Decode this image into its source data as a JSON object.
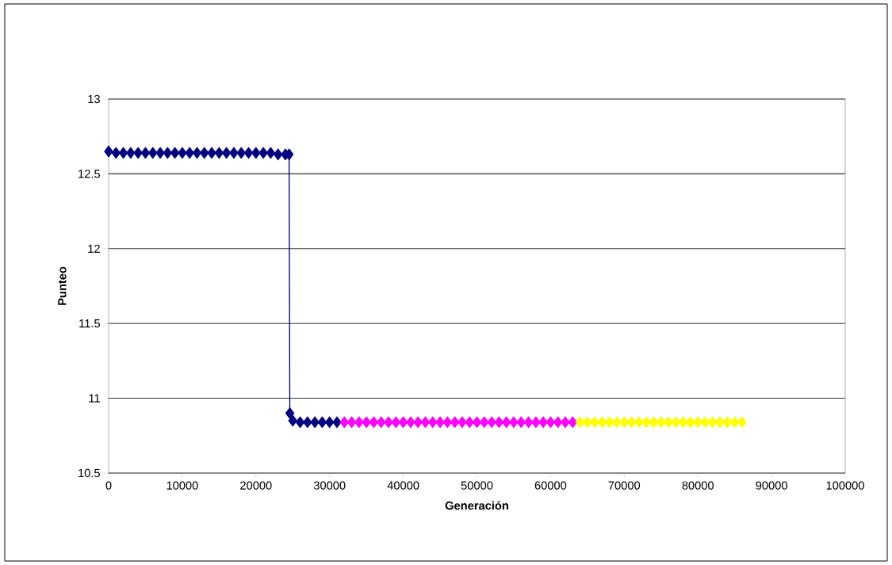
{
  "chart_data": {
    "type": "line",
    "xlabel": "Generación",
    "ylabel": "Punteo",
    "xlim": [
      0,
      100000
    ],
    "xticks": [
      0,
      10000,
      20000,
      30000,
      40000,
      50000,
      60000,
      70000,
      80000,
      90000,
      100000
    ],
    "ylim": [
      10.5,
      13
    ],
    "yticks": [
      10.5,
      11,
      11.5,
      12,
      12.5,
      13
    ],
    "grid": "y",
    "marker": "diamond",
    "line_style": "solid",
    "series": [
      {
        "color": "#000080",
        "x": [
          0,
          1000,
          2000,
          3000,
          4000,
          5000,
          6000,
          7000,
          8000,
          9000,
          10000,
          11000,
          12000,
          13000,
          14000,
          15000,
          16000,
          17000,
          18000,
          19000,
          20000,
          21000,
          22000,
          23000,
          24000,
          24500,
          24600,
          25000,
          26000,
          27000,
          28000,
          29000,
          30000,
          31000
        ],
        "values": [
          12.65,
          12.64,
          12.64,
          12.64,
          12.64,
          12.64,
          12.64,
          12.64,
          12.64,
          12.64,
          12.64,
          12.64,
          12.64,
          12.64,
          12.64,
          12.64,
          12.64,
          12.64,
          12.64,
          12.64,
          12.64,
          12.64,
          12.64,
          12.63,
          12.63,
          12.63,
          10.9,
          10.85,
          10.84,
          10.84,
          10.84,
          10.84,
          10.84,
          10.84
        ]
      },
      {
        "type": "scatter",
        "color": "#ff00ff",
        "x": [
          32000,
          33000,
          34000,
          35000,
          36000,
          37000,
          38000,
          39000,
          40000,
          41000,
          42000,
          43000,
          44000,
          45000,
          46000,
          47000,
          48000,
          49000,
          50000,
          51000,
          52000,
          53000,
          54000,
          55000,
          56000,
          57000,
          58000,
          59000,
          60000,
          61000,
          62000,
          63000
        ],
        "values": [
          10.84,
          10.84,
          10.84,
          10.84,
          10.84,
          10.84,
          10.84,
          10.84,
          10.84,
          10.84,
          10.84,
          10.84,
          10.84,
          10.84,
          10.84,
          10.84,
          10.84,
          10.84,
          10.84,
          10.84,
          10.84,
          10.84,
          10.84,
          10.84,
          10.84,
          10.84,
          10.84,
          10.84,
          10.84,
          10.84,
          10.84,
          10.84
        ]
      },
      {
        "type": "scatter",
        "color": "#ffff00",
        "x": [
          64000,
          65000,
          66000,
          67000,
          68000,
          69000,
          70000,
          71000,
          72000,
          73000,
          74000,
          75000,
          76000,
          77000,
          78000,
          79000,
          80000,
          81000,
          82000,
          83000,
          84000,
          85000,
          86000
        ],
        "values": [
          10.84,
          10.84,
          10.84,
          10.84,
          10.84,
          10.84,
          10.84,
          10.84,
          10.84,
          10.84,
          10.84,
          10.84,
          10.84,
          10.84,
          10.84,
          10.84,
          10.84,
          10.84,
          10.84,
          10.84,
          10.84,
          10.84,
          10.84
        ]
      }
    ]
  }
}
